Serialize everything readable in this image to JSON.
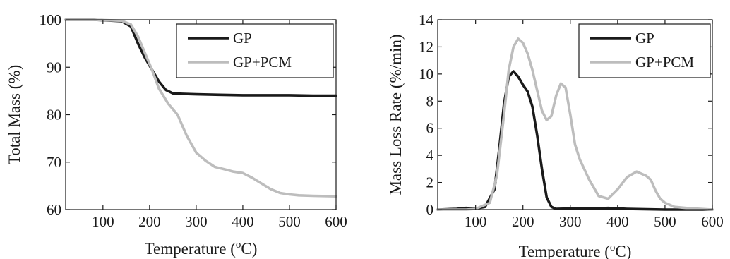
{
  "colors": {
    "gp": "#1a1a1a",
    "gp_pcm": "#bdbdbd",
    "axes": "#1a1a1a"
  },
  "chart_data": [
    {
      "type": "line",
      "xlabel_main": "Temperature (",
      "xlabel_sup": "o",
      "xlabel_tail": "C)",
      "ylabel": "Total Mass (%)",
      "xlim": [
        20,
        600
      ],
      "ylim": [
        60,
        100
      ],
      "xticks": [
        100,
        200,
        300,
        400,
        500,
        600
      ],
      "yticks": [
        60,
        70,
        80,
        90,
        100
      ],
      "legend_position": "top-right",
      "series": [
        {
          "name": "GP",
          "color": "#1a1a1a",
          "x": [
            20,
            80,
            140,
            160,
            175,
            190,
            205,
            220,
            235,
            250,
            270,
            300,
            350,
            400,
            450,
            500,
            550,
            600
          ],
          "y": [
            100,
            100,
            99.7,
            98.6,
            95.0,
            92.0,
            89.5,
            87.0,
            85.2,
            84.5,
            84.4,
            84.3,
            84.2,
            84.1,
            84.1,
            84.1,
            84.0,
            84.0
          ]
        },
        {
          "name": "GP+PCM",
          "color": "#bdbdbd",
          "x": [
            20,
            80,
            140,
            160,
            175,
            190,
            205,
            220,
            240,
            260,
            280,
            300,
            320,
            340,
            360,
            380,
            400,
            420,
            440,
            460,
            480,
            500,
            520,
            550,
            600
          ],
          "y": [
            100,
            100,
            99.8,
            99.0,
            96.5,
            93.0,
            89.5,
            85.5,
            82.3,
            80.0,
            75.5,
            72.0,
            70.3,
            69.0,
            68.5,
            68.0,
            67.7,
            66.7,
            65.5,
            64.3,
            63.5,
            63.2,
            63.0,
            62.9,
            62.8
          ]
        }
      ]
    },
    {
      "type": "line",
      "xlabel_main": "Temperature (",
      "xlabel_sup": "o",
      "xlabel_tail": "C)",
      "ylabel": "Mass Loss Rate (%/min)",
      "xlim": [
        20,
        600
      ],
      "ylim": [
        0,
        14
      ],
      "xticks": [
        100,
        200,
        300,
        400,
        500,
        600
      ],
      "yticks": [
        0,
        2,
        4,
        6,
        8,
        10,
        12,
        14
      ],
      "legend_position": "top-right",
      "series": [
        {
          "name": "GP",
          "color": "#1a1a1a",
          "x": [
            20,
            60,
            80,
            100,
            120,
            140,
            150,
            160,
            170,
            180,
            190,
            200,
            210,
            220,
            230,
            240,
            250,
            260,
            270,
            300,
            350,
            380,
            420,
            500,
            600
          ],
          "y": [
            0,
            0.05,
            0.12,
            0.08,
            0.2,
            1.5,
            4.5,
            7.8,
            9.8,
            10.2,
            9.8,
            9.2,
            8.7,
            7.6,
            5.5,
            3.0,
            0.9,
            0.2,
            0.05,
            0.08,
            0.08,
            0.12,
            0.05,
            0,
            0
          ]
        },
        {
          "name": "GP+PCM",
          "color": "#bdbdbd",
          "x": [
            20,
            80,
            100,
            130,
            145,
            160,
            170,
            180,
            190,
            200,
            210,
            220,
            230,
            240,
            250,
            260,
            270,
            280,
            290,
            300,
            310,
            320,
            340,
            360,
            380,
            400,
            420,
            440,
            460,
            470,
            480,
            490,
            500,
            520,
            550,
            600
          ],
          "y": [
            0,
            0,
            0.05,
            0.5,
            2.5,
            7.0,
            10.3,
            12.0,
            12.6,
            12.3,
            11.5,
            10.3,
            8.8,
            7.3,
            6.6,
            6.9,
            8.4,
            9.3,
            9.0,
            7.0,
            4.8,
            3.7,
            2.2,
            1.0,
            0.8,
            1.5,
            2.4,
            2.8,
            2.5,
            2.2,
            1.4,
            0.8,
            0.5,
            0.2,
            0.1,
            0
          ]
        }
      ]
    }
  ]
}
